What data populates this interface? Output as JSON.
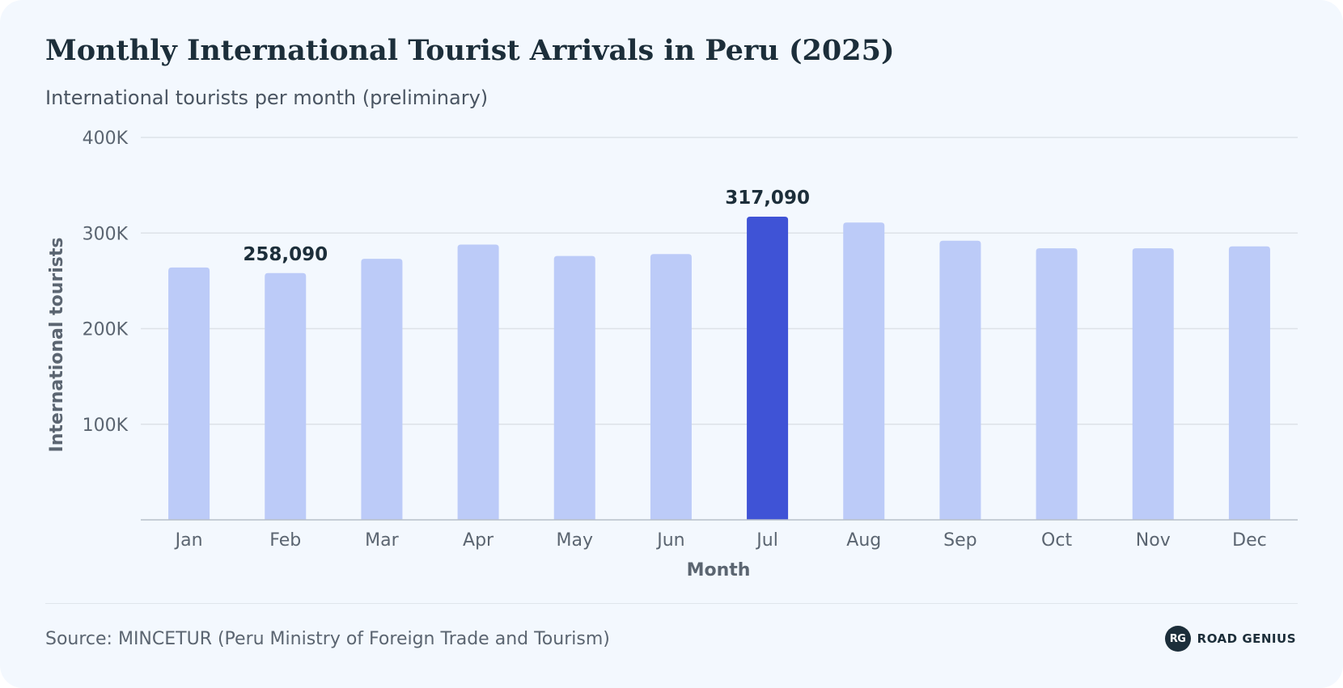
{
  "header": {
    "title": "Monthly International Tourist Arrivals in Peru (2025)",
    "subtitle": "International tourists per month (preliminary)"
  },
  "footer": {
    "source": "Source: MINCETUR (Peru Ministry of Foreign Trade and Tourism)",
    "brand_logo_text": "RG",
    "brand_name": "ROAD GENIUS"
  },
  "colors": {
    "bar": "#bccbf8",
    "highlight_bar": "#3f53d6",
    "grid": "#dde2e8",
    "axis": "#b8bfc8",
    "tick_text": "#5b6571",
    "label_text": "#1c2e3a"
  },
  "chart_data": {
    "type": "bar",
    "title": "Monthly International Tourist Arrivals in Peru (2025)",
    "subtitle": "International tourists per month (preliminary)",
    "xlabel": "Month",
    "ylabel": "International tourists",
    "ylim": [
      0,
      400000
    ],
    "yticks": [
      100000,
      200000,
      300000,
      400000
    ],
    "ytick_labels": [
      "100K",
      "200K",
      "300K",
      "400K"
    ],
    "grid": true,
    "categories": [
      "Jan",
      "Feb",
      "Mar",
      "Apr",
      "May",
      "Jun",
      "Jul",
      "Aug",
      "Sep",
      "Oct",
      "Nov",
      "Dec"
    ],
    "values": [
      264000,
      258090,
      273000,
      288000,
      276000,
      278000,
      317090,
      311000,
      292000,
      284000,
      284000,
      286000
    ],
    "highlight": "Jul",
    "data_labels": [
      {
        "category": "Feb",
        "text": "258,090"
      },
      {
        "category": "Jul",
        "text": "317,090"
      }
    ]
  }
}
